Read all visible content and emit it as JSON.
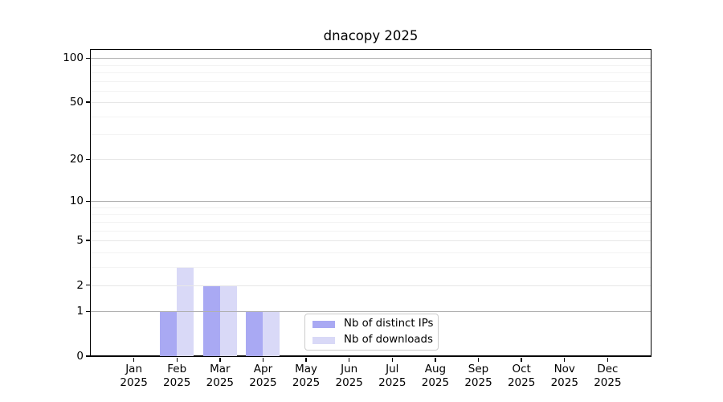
{
  "chart_data": {
    "type": "bar",
    "title": "dnacopy 2025",
    "categories": [
      "Jan",
      "Feb",
      "Mar",
      "Apr",
      "May",
      "Jun",
      "Jul",
      "Aug",
      "Sep",
      "Oct",
      "Nov",
      "Dec"
    ],
    "category_year": "2025",
    "series": [
      {
        "name": "Nb of distinct IPs",
        "color": "#a9a9f3",
        "values": [
          0,
          1,
          2,
          1,
          0,
          0,
          0,
          0,
          0,
          0,
          0,
          0
        ]
      },
      {
        "name": "Nb of downloads",
        "color": "#d9d9f7",
        "values": [
          0,
          3,
          2,
          1,
          0,
          0,
          0,
          0,
          0,
          0,
          0,
          0
        ]
      }
    ],
    "yscale": "log10(1+y)",
    "ylim": [
      0,
      115
    ],
    "y_ticks": [
      0,
      1,
      2,
      5,
      10,
      20,
      50,
      100
    ],
    "gridlines": {
      "decade": [
        1,
        10,
        100
      ],
      "major": [
        2,
        5,
        20,
        50
      ],
      "minor": [
        3,
        4,
        6,
        7,
        8,
        9,
        30,
        40,
        60,
        70,
        80,
        90
      ]
    },
    "grid_colors": {
      "decade": "#b0b0b0",
      "major": "#e7e7e7",
      "minor": "#f3f3f3"
    },
    "legend_position": "lower center",
    "colors": {
      "spine": "#000000",
      "text": "#000000",
      "legend_border": "#cccccc",
      "background": "#ffffff"
    }
  }
}
